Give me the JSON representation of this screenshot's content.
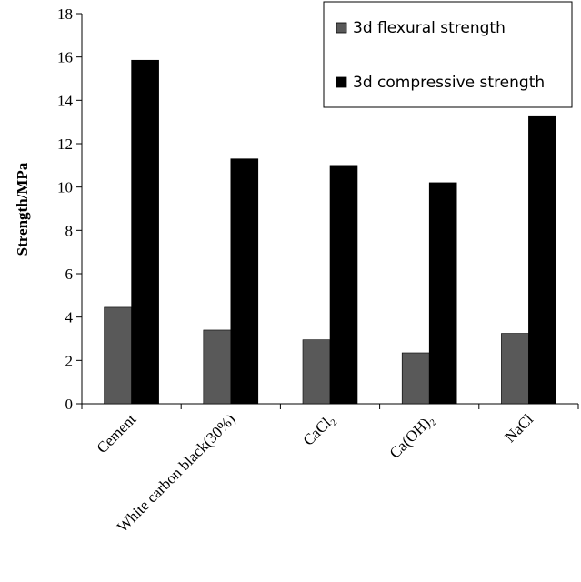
{
  "chart_data": {
    "type": "bar",
    "categories": [
      "Cement",
      "White carbon black(30%)",
      "CaCl₂",
      "Ca(OH)₂",
      "NaCl"
    ],
    "series": [
      {
        "name": "3d flexural strength",
        "values": [
          4.45,
          3.4,
          2.95,
          2.35,
          3.25
        ],
        "color": "#595959"
      },
      {
        "name": "3d compressive strength",
        "values": [
          15.85,
          11.3,
          11.0,
          10.2,
          13.25
        ],
        "color": "#000000"
      }
    ],
    "title": "",
    "xlabel": "",
    "ylabel": "Strength/MPa",
    "ylim": [
      0,
      18
    ],
    "yticks": [
      0,
      2,
      4,
      6,
      8,
      10,
      12,
      14,
      16,
      18
    ],
    "grid": false,
    "legend_position": "top-right"
  }
}
